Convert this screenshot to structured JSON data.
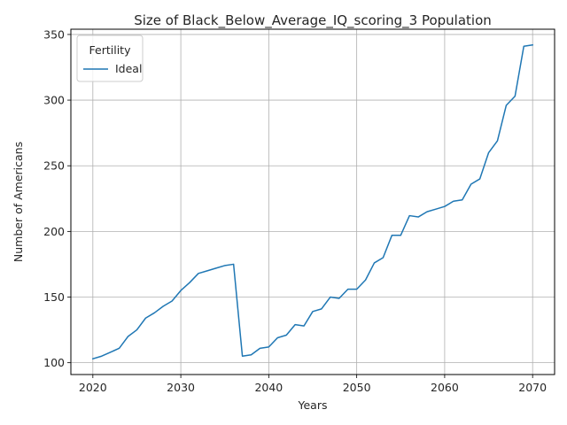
{
  "chart_data": {
    "type": "line",
    "title": "Size of Black_Below_Average_IQ_scoring_3 Population",
    "xlabel": "Years",
    "ylabel": "Number of Americans",
    "xlim": [
      2017.5,
      2072.5
    ],
    "ylim": [
      91,
      354
    ],
    "x_ticks": [
      2020,
      2030,
      2040,
      2050,
      2060,
      2070
    ],
    "y_ticks": [
      100,
      150,
      200,
      250,
      300,
      350
    ],
    "grid": true,
    "legend": {
      "title": "Fertility",
      "placement": "top-left"
    },
    "series": [
      {
        "name": "Ideal",
        "color": "#1f77b4",
        "x": [
          2020,
          2021,
          2022,
          2023,
          2024,
          2025,
          2026,
          2027,
          2028,
          2029,
          2030,
          2031,
          2032,
          2033,
          2034,
          2035,
          2036,
          2037,
          2038,
          2039,
          2040,
          2041,
          2042,
          2043,
          2044,
          2045,
          2046,
          2047,
          2048,
          2049,
          2050,
          2051,
          2052,
          2053,
          2054,
          2055,
          2056,
          2057,
          2058,
          2059,
          2060,
          2061,
          2062,
          2063,
          2064,
          2065,
          2066,
          2067,
          2068,
          2069,
          2070
        ],
        "values": [
          103,
          105,
          108,
          111,
          120,
          125,
          134,
          138,
          143,
          147,
          155,
          161,
          168,
          170,
          172,
          174,
          175,
          105,
          106,
          111,
          112,
          119,
          121,
          129,
          128,
          139,
          141,
          150,
          149,
          156,
          156,
          163,
          176,
          180,
          197,
          197,
          212,
          211,
          215,
          217,
          219,
          223,
          224,
          236,
          240,
          260,
          269,
          296,
          303,
          341,
          342
        ]
      }
    ]
  }
}
